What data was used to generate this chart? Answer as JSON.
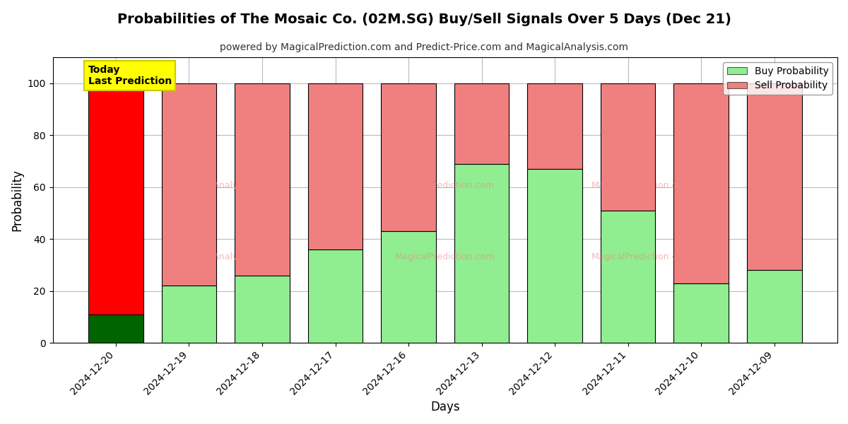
{
  "title": "Probabilities of The Mosaic Co. (02M.SG) Buy/Sell Signals Over 5 Days (Dec 21)",
  "subtitle": "powered by MagicalPrediction.com and Predict-Price.com and MagicalAnalysis.com",
  "xlabel": "Days",
  "ylabel": "Probability",
  "dates": [
    "2024-12-20",
    "2024-12-19",
    "2024-12-18",
    "2024-12-17",
    "2024-12-16",
    "2024-12-13",
    "2024-12-12",
    "2024-12-11",
    "2024-12-10",
    "2024-12-09"
  ],
  "buy_values": [
    11,
    22,
    26,
    36,
    43,
    69,
    67,
    51,
    23,
    28
  ],
  "sell_values": [
    89,
    78,
    74,
    64,
    57,
    31,
    33,
    49,
    77,
    72
  ],
  "today_buy_color": "#006400",
  "today_sell_color": "#ff0000",
  "buy_color": "#90EE90",
  "sell_color": "#F08080",
  "today_label_bg": "#ffff00",
  "today_label_text": "Today\nLast Prediction",
  "legend_buy": "Buy Probability",
  "legend_sell": "Sell Probability",
  "ylim": [
    0,
    110
  ],
  "yticks": [
    0,
    20,
    40,
    60,
    80,
    100
  ],
  "dashed_line_y": 110,
  "background_color": "#ffffff",
  "grid_color": "#bbbbbb",
  "bar_edge_color": "#000000",
  "bar_width": 0.75
}
